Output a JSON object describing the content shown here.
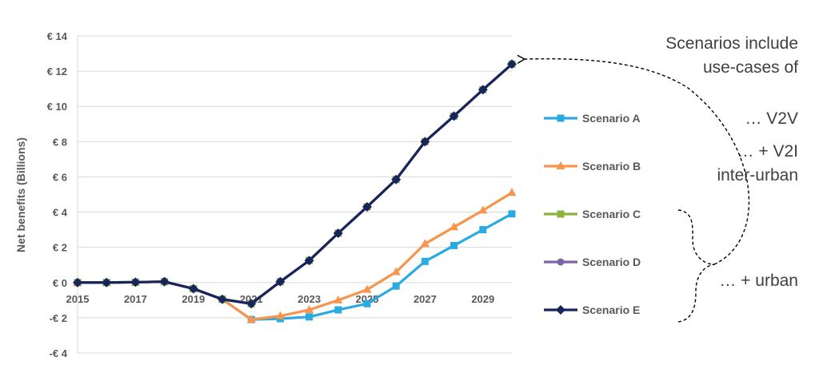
{
  "chart_data": {
    "type": "line",
    "ylabel": "Net benefits (Billions)",
    "xlabel": "",
    "x": [
      2015,
      2016,
      2017,
      2018,
      2019,
      2020,
      2021,
      2022,
      2023,
      2024,
      2025,
      2026,
      2027,
      2028,
      2029,
      2030
    ],
    "x_tick_labels": [
      "2015",
      "2017",
      "2019",
      "2021",
      "2023",
      "2025",
      "2027",
      "2029"
    ],
    "x_tick_values": [
      2015,
      2017,
      2019,
      2021,
      2023,
      2025,
      2027,
      2029
    ],
    "ylim": [
      -4,
      14
    ],
    "y_ticks": [
      {
        "value": 14,
        "label": "€ 14"
      },
      {
        "value": 12,
        "label": "€ 12"
      },
      {
        "value": 10,
        "label": "€ 10"
      },
      {
        "value": 8,
        "label": "€ 8"
      },
      {
        "value": 6,
        "label": "€ 6"
      },
      {
        "value": 4,
        "label": "€ 4"
      },
      {
        "value": 2,
        "label": "€ 2"
      },
      {
        "value": 0,
        "label": "€ 0"
      },
      {
        "value": -2,
        "label": "-€ 2"
      },
      {
        "value": -4,
        "label": "-€ 4"
      }
    ],
    "grid": true,
    "legend_position": "right",
    "series": [
      {
        "name": "Scenario A",
        "color": "#29ABE2",
        "marker": "square",
        "values": [
          0,
          0,
          0.02,
          0.05,
          -0.35,
          -0.95,
          -2.1,
          -2.05,
          -1.95,
          -1.55,
          -1.2,
          -0.2,
          1.2,
          2.1,
          3.0,
          3.9
        ]
      },
      {
        "name": "Scenario B",
        "color": "#F7944D",
        "marker": "triangle",
        "values": [
          0,
          0,
          0.02,
          0.05,
          -0.35,
          -0.95,
          -2.1,
          -1.9,
          -1.55,
          -1.0,
          -0.4,
          0.6,
          2.2,
          3.15,
          4.1,
          5.1
        ]
      },
      {
        "name": "Scenario C",
        "color": "#8DB33F",
        "marker": "square",
        "values": [
          0,
          0,
          0.02,
          0.05,
          -0.35,
          -0.95,
          -1.2,
          0.05,
          1.25,
          2.8,
          4.3,
          5.85,
          8.0,
          9.45,
          10.95,
          12.4
        ]
      },
      {
        "name": "Scenario D",
        "color": "#7F63A6",
        "marker": "circle",
        "values": [
          0,
          0,
          0.02,
          0.05,
          -0.35,
          -0.95,
          -1.2,
          0.05,
          1.25,
          2.8,
          4.3,
          5.85,
          8.0,
          9.45,
          10.95,
          12.4
        ]
      },
      {
        "name": "Scenario E",
        "color": "#17255A",
        "marker": "diamond",
        "values": [
          0,
          0,
          0.02,
          0.05,
          -0.35,
          -0.95,
          -1.2,
          0.05,
          1.25,
          2.8,
          4.3,
          5.85,
          8.0,
          9.45,
          10.95,
          12.4
        ]
      }
    ],
    "annotations": {
      "intro_line1": "Scenarios include",
      "intro_line2": "use-cases of",
      "v2v": "… V2V",
      "v2i_line1": "… + V2I",
      "v2i_line2": "inter-urban",
      "urban": "… + urban"
    }
  }
}
